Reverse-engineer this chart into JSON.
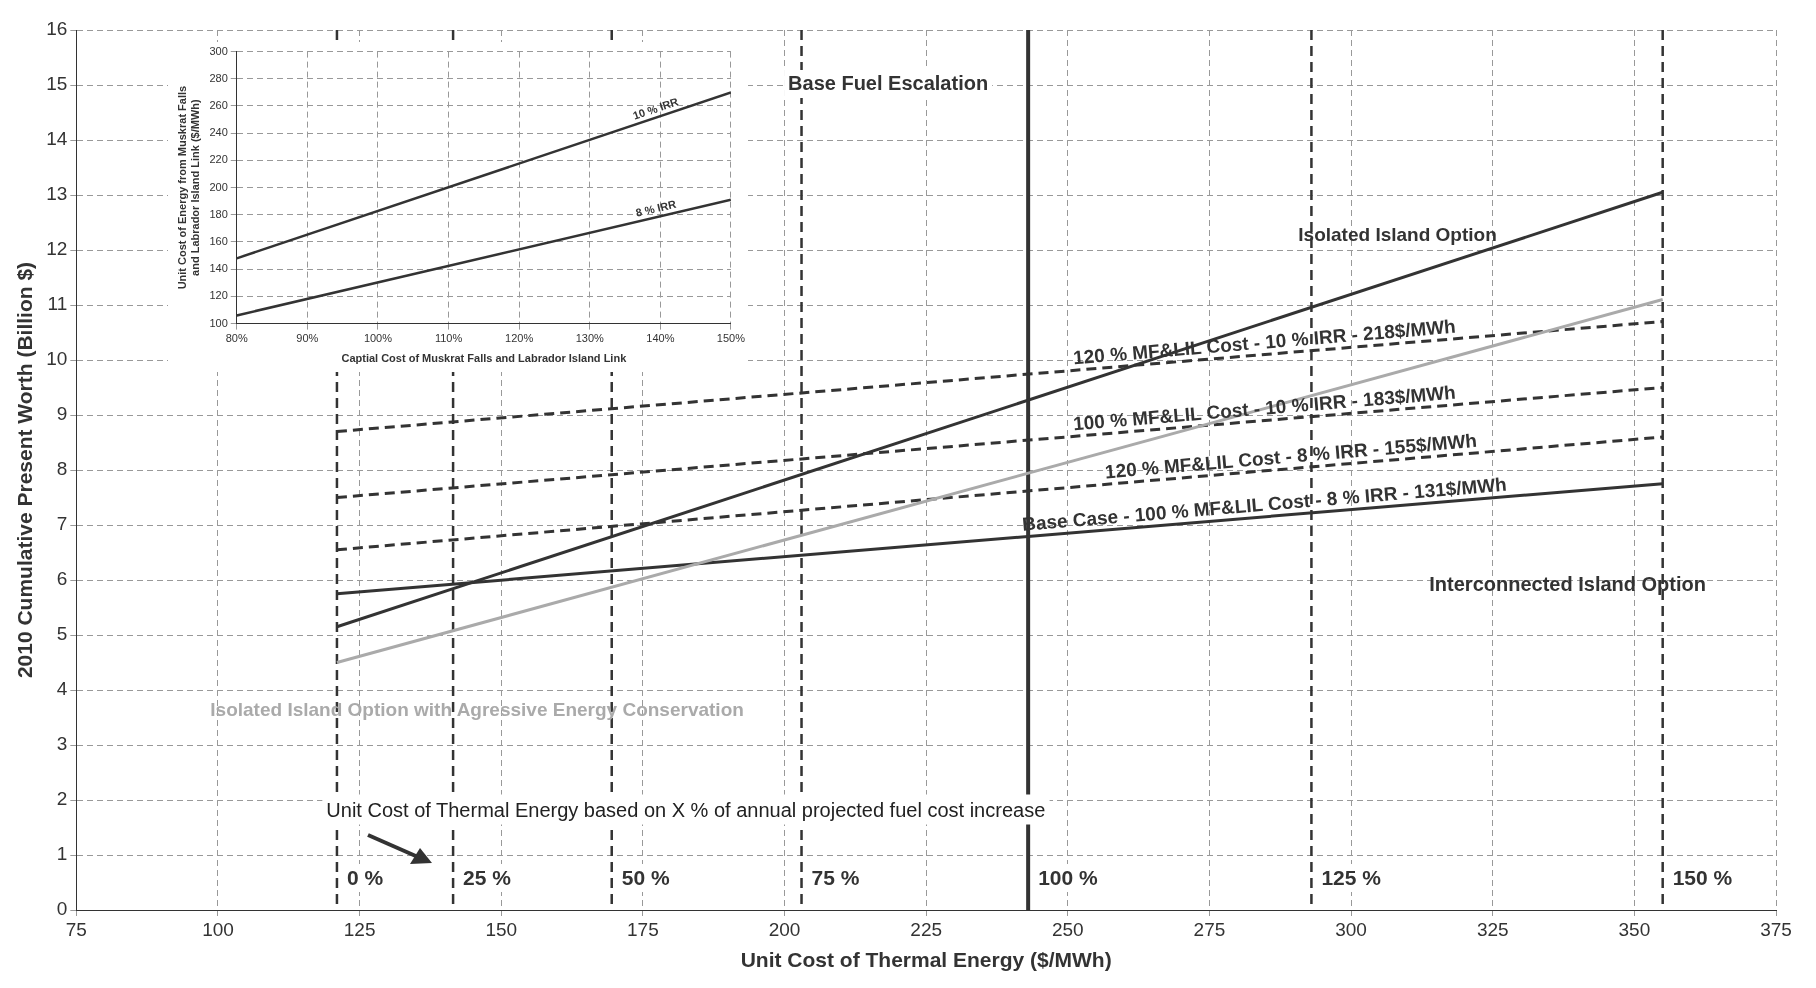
{
  "chart_data": [
    {
      "type": "line",
      "xlabel": "Unit Cost of Thermal Energy ($/MWh)",
      "ylabel": "2010 Cumulative Present Worth (Billion $)",
      "xlim": [
        75,
        375
      ],
      "xticks": [
        75,
        100,
        125,
        150,
        175,
        200,
        225,
        250,
        275,
        300,
        325,
        350,
        375
      ],
      "ylim": [
        0,
        16
      ],
      "yticks": [
        0,
        1,
        2,
        3,
        4,
        5,
        6,
        7,
        8,
        9,
        10,
        11,
        12,
        13,
        14,
        15,
        16
      ],
      "grid": true,
      "legend": false,
      "marker": "none",
      "line_style": "solid",
      "series": [
        {
          "name": "Isolated Island Option",
          "color": "#333333",
          "x": [
            121,
            355
          ],
          "values": [
            5.15,
            13.05
          ]
        },
        {
          "name": "Isolated Island Option with Agressive Energy Conservation",
          "color": "#aaaaaa",
          "x": [
            121,
            355
          ],
          "values": [
            4.5,
            11.1
          ]
        },
        {
          "name": "Base Case - 100 % MF&LIL Cost - 8 % IRR - 131$/MWh",
          "color": "#333333",
          "x": [
            121,
            355
          ],
          "values": [
            5.75,
            7.75
          ]
        },
        {
          "name": "120 % MF&LIL Cost - 10 % IRR - 218$/MWh",
          "color": "#333333",
          "line_style": "dashed",
          "x": [
            121,
            355
          ],
          "values": [
            8.7,
            10.7
          ]
        },
        {
          "name": "100 % MF&LIL Cost - 10 % IRR - 183$/MWh",
          "color": "#333333",
          "line_style": "dashed",
          "x": [
            121,
            355
          ],
          "values": [
            7.5,
            9.5
          ]
        },
        {
          "name": "120 % MF&LIL Cost - 8 % IRR - 155$/MWh",
          "color": "#333333",
          "line_style": "dashed",
          "x": [
            121,
            355
          ],
          "values": [
            6.55,
            8.6
          ]
        }
      ],
      "ref_lines": [
        {
          "axis": "x",
          "value": 121,
          "line_style": "dashed",
          "color": "#333333"
        },
        {
          "axis": "x",
          "value": 141.5,
          "line_style": "dashed",
          "color": "#333333"
        },
        {
          "axis": "x",
          "value": 169.5,
          "line_style": "dashed",
          "color": "#333333"
        },
        {
          "axis": "x",
          "value": 203,
          "line_style": "dashed",
          "color": "#333333"
        },
        {
          "axis": "x",
          "value": 243,
          "line_style": "solid",
          "color": "#333333"
        },
        {
          "axis": "x",
          "value": 293,
          "line_style": "dashed",
          "color": "#333333"
        },
        {
          "axis": "x",
          "value": 355,
          "line_style": "dashed",
          "color": "#333333"
        }
      ],
      "annotations": [
        "Base Fuel Escalation",
        "Interconnected Island Option",
        "Unit Cost of Thermal Energy based on X % of annual projected fuel cost increase",
        {
          "text": "0 %",
          "x": 121,
          "y": 0.6
        },
        {
          "text": "25 %",
          "x": 141.5,
          "y": 0.6
        },
        {
          "text": "50 %",
          "x": 169.5,
          "y": 0.6
        },
        {
          "text": "75 %",
          "x": 203,
          "y": 0.6
        },
        {
          "text": "100 %",
          "x": 243,
          "y": 0.6
        },
        {
          "text": "125 %",
          "x": 293,
          "y": 0.6
        },
        {
          "text": "150 %",
          "x": 355,
          "y": 0.6
        }
      ]
    },
    {
      "type": "line",
      "xlabel": "Captial Cost of Muskrat Falls and Labrador Island Link",
      "ylabel": "Unit Cost of Energy from Muskrat Falls and Labrador Island Link ($/MWh)",
      "xlim": [
        80,
        150
      ],
      "xticks": [
        {
          "value": 80,
          "label": "80%"
        },
        {
          "value": 90,
          "label": "90%"
        },
        {
          "value": 100,
          "label": "100%"
        },
        {
          "value": 110,
          "label": "110%"
        },
        {
          "value": 120,
          "label": "120%"
        },
        {
          "value": 130,
          "label": "130%"
        },
        {
          "value": 140,
          "label": "140%"
        },
        {
          "value": 150,
          "label": "150%"
        }
      ],
      "ylim": [
        100,
        300
      ],
      "yticks": [
        100,
        120,
        140,
        160,
        180,
        200,
        220,
        240,
        260,
        280,
        300
      ],
      "grid": true,
      "legend": false,
      "marker": "none",
      "line_style": "solid",
      "series": [
        {
          "name": "10 % IRR",
          "color": "#333333",
          "x": [
            80,
            150
          ],
          "values": [
            148,
            270
          ]
        },
        {
          "name": "8 % IRR",
          "color": "#333333",
          "x": [
            80,
            150
          ],
          "values": [
            106,
            191
          ]
        }
      ]
    }
  ]
}
